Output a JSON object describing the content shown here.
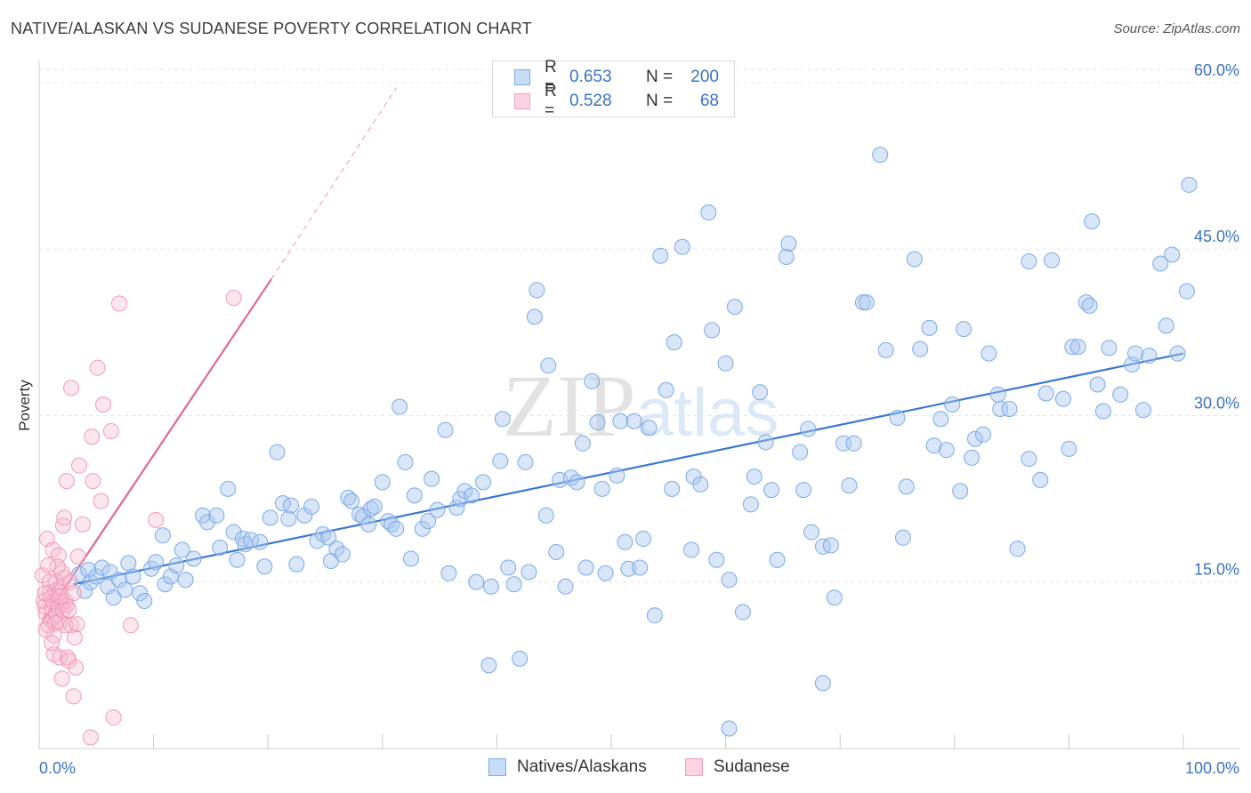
{
  "title": "NATIVE/ALASKAN VS SUDANESE POVERTY CORRELATION CHART",
  "source": "Source: ZipAtlas.com",
  "watermark": "ZIPatlas",
  "legend": [
    {
      "label": "R =",
      "r": "0.653",
      "n_label": "N =",
      "n": "200",
      "color": "#7aaae8"
    },
    {
      "label": "R =",
      "r": "0.528",
      "n_label": "N =",
      "n": "68",
      "color": "#f2a0bb"
    }
  ],
  "bottom_legend": [
    "Natives/Alaskans",
    "Sudanese"
  ],
  "colors": {
    "blue": "#3a77d4",
    "blue_fill": "#aac8f0",
    "pink": "#e0669a",
    "pink_fill": "#f6b8cf",
    "axis_text": "#3a72c4"
  },
  "chart_data": {
    "type": "scatter",
    "title": "NATIVE/ALASKAN VS SUDANESE POVERTY CORRELATION CHART",
    "xlabel": "",
    "ylabel": "Poverty",
    "xlim": [
      0,
      105
    ],
    "ylim": [
      0,
      62
    ],
    "x_tick_labels": [
      "0.0%",
      "100.0%"
    ],
    "y_ticks": [
      15,
      30,
      45,
      60
    ],
    "y_tick_labels": [
      "15.0%",
      "30.0%",
      "45.0%",
      "60.0%"
    ],
    "grid": true,
    "legend_position": "top-center",
    "series": [
      {
        "name": "Natives/Alaskans",
        "color": "#3a77d4",
        "trend": {
          "x0": 3,
          "y0": 14.8,
          "x1": 100,
          "y1": 35.6
        },
        "points": [
          [
            3.5,
            15.7
          ],
          [
            4,
            14.2
          ],
          [
            4.3,
            16.1
          ],
          [
            4.5,
            15.0
          ],
          [
            5,
            15.5
          ],
          [
            5.5,
            16.3
          ],
          [
            6,
            14.6
          ],
          [
            6.2,
            15.9
          ],
          [
            6.5,
            13.6
          ],
          [
            7,
            15.2
          ],
          [
            7.5,
            14.3
          ],
          [
            7.8,
            16.7
          ],
          [
            8.2,
            15.5
          ],
          [
            8.8,
            14.0
          ],
          [
            9.2,
            13.3
          ],
          [
            9.8,
            16.2
          ],
          [
            10.2,
            16.8
          ],
          [
            10.8,
            19.2
          ],
          [
            11,
            14.8
          ],
          [
            11.5,
            15.5
          ],
          [
            12,
            16.5
          ],
          [
            12.5,
            17.9
          ],
          [
            12.8,
            15.2
          ],
          [
            13.5,
            17.1
          ],
          [
            14.3,
            21.0
          ],
          [
            14.7,
            20.4
          ],
          [
            15.5,
            21.0
          ],
          [
            15.8,
            18.1
          ],
          [
            16.5,
            23.4
          ],
          [
            17,
            19.5
          ],
          [
            17.3,
            17.0
          ],
          [
            17.8,
            18.9
          ],
          [
            18,
            18.4
          ],
          [
            18.5,
            18.8
          ],
          [
            19.3,
            18.6
          ],
          [
            19.7,
            16.4
          ],
          [
            20.2,
            20.8
          ],
          [
            20.8,
            26.7
          ],
          [
            21.3,
            22.1
          ],
          [
            21.8,
            20.7
          ],
          [
            22,
            21.9
          ],
          [
            22.5,
            16.6
          ],
          [
            23.2,
            21.0
          ],
          [
            23.8,
            21.8
          ],
          [
            24.3,
            18.7
          ],
          [
            24.8,
            19.3
          ],
          [
            25.3,
            19.0
          ],
          [
            25.5,
            16.9
          ],
          [
            26,
            18.0
          ],
          [
            26.5,
            17.5
          ],
          [
            27,
            22.6
          ],
          [
            27.3,
            22.3
          ],
          [
            28,
            21.1
          ],
          [
            28.3,
            20.9
          ],
          [
            28.8,
            20.2
          ],
          [
            29,
            21.6
          ],
          [
            29.3,
            21.8
          ],
          [
            30,
            24.0
          ],
          [
            30.5,
            20.5
          ],
          [
            30.8,
            20.2
          ],
          [
            31.2,
            19.8
          ],
          [
            31.5,
            30.8
          ],
          [
            32,
            25.8
          ],
          [
            32.5,
            17.1
          ],
          [
            32.8,
            22.8
          ],
          [
            33.5,
            19.8
          ],
          [
            34,
            20.5
          ],
          [
            34.3,
            24.3
          ],
          [
            34.8,
            21.5
          ],
          [
            35.5,
            28.7
          ],
          [
            35.8,
            15.8
          ],
          [
            36.5,
            21.7
          ],
          [
            36.8,
            22.5
          ],
          [
            37.2,
            23.2
          ],
          [
            37.8,
            22.8
          ],
          [
            38.2,
            15.0
          ],
          [
            38.8,
            24.0
          ],
          [
            39.3,
            7.5
          ],
          [
            39.5,
            14.6
          ],
          [
            40.3,
            25.9
          ],
          [
            40.5,
            29.7
          ],
          [
            41,
            16.3
          ],
          [
            41.5,
            14.8
          ],
          [
            42,
            8.1
          ],
          [
            42.5,
            25.8
          ],
          [
            42.8,
            15.9
          ],
          [
            43.3,
            38.9
          ],
          [
            43.5,
            41.3
          ],
          [
            44.3,
            21.0
          ],
          [
            44.5,
            34.5
          ],
          [
            45.2,
            17.7
          ],
          [
            45.5,
            24.2
          ],
          [
            46,
            14.6
          ],
          [
            46.5,
            24.4
          ],
          [
            47,
            24.0
          ],
          [
            47.5,
            27.5
          ],
          [
            47.8,
            16.3
          ],
          [
            48.3,
            33.1
          ],
          [
            48.8,
            29.4
          ],
          [
            49.2,
            23.4
          ],
          [
            49.5,
            15.8
          ],
          [
            50.5,
            24.6
          ],
          [
            50.8,
            29.5
          ],
          [
            51.2,
            18.6
          ],
          [
            51.5,
            16.2
          ],
          [
            52,
            29.5
          ],
          [
            52.5,
            16.3
          ],
          [
            52.8,
            18.9
          ],
          [
            53.3,
            28.9
          ],
          [
            53.8,
            12.0
          ],
          [
            54.3,
            44.4
          ],
          [
            54.8,
            32.3
          ],
          [
            55.3,
            23.4
          ],
          [
            55.5,
            36.6
          ],
          [
            56.2,
            45.2
          ],
          [
            57,
            17.9
          ],
          [
            57.2,
            24.5
          ],
          [
            57.8,
            23.8
          ],
          [
            58.5,
            48.3
          ],
          [
            58.8,
            37.7
          ],
          [
            59.2,
            17.0
          ],
          [
            60,
            34.7
          ],
          [
            60.3,
            15.2
          ],
          [
            60.8,
            39.8
          ],
          [
            61.5,
            12.3
          ],
          [
            62.2,
            22.0
          ],
          [
            62.5,
            24.5
          ],
          [
            63,
            32.1
          ],
          [
            63.5,
            27.6
          ],
          [
            64,
            23.3
          ],
          [
            64.5,
            17.0
          ],
          [
            65.3,
            44.3
          ],
          [
            65.5,
            45.5
          ],
          [
            66.5,
            26.7
          ],
          [
            66.8,
            23.3
          ],
          [
            67.2,
            28.8
          ],
          [
            67.5,
            19.5
          ],
          [
            68.5,
            18.2
          ],
          [
            68.5,
            5.9
          ],
          [
            69.2,
            18.3
          ],
          [
            69.5,
            13.6
          ],
          [
            70.3,
            27.5
          ],
          [
            70.8,
            23.7
          ],
          [
            71.2,
            27.5
          ],
          [
            72,
            40.2
          ],
          [
            72.3,
            40.2
          ],
          [
            73.5,
            53.5
          ],
          [
            74,
            35.9
          ],
          [
            75,
            29.8
          ],
          [
            75.5,
            19.0
          ],
          [
            75.8,
            23.6
          ],
          [
            76.5,
            44.1
          ],
          [
            77,
            36.0
          ],
          [
            77.8,
            37.9
          ],
          [
            78.2,
            27.3
          ],
          [
            78.8,
            29.7
          ],
          [
            79.3,
            26.9
          ],
          [
            79.8,
            31.0
          ],
          [
            80.5,
            23.2
          ],
          [
            80.8,
            37.8
          ],
          [
            81.5,
            26.2
          ],
          [
            81.8,
            27.9
          ],
          [
            82.5,
            28.3
          ],
          [
            83,
            35.6
          ],
          [
            83.8,
            31.9
          ],
          [
            84,
            30.6
          ],
          [
            84.8,
            30.6
          ],
          [
            85.5,
            18.0
          ],
          [
            86.5,
            43.9
          ],
          [
            86.5,
            26.1
          ],
          [
            87.5,
            24.2
          ],
          [
            88,
            32.0
          ],
          [
            88.5,
            44.0
          ],
          [
            89.5,
            31.5
          ],
          [
            90,
            27.0
          ],
          [
            90.3,
            36.2
          ],
          [
            90.8,
            36.2
          ],
          [
            91.5,
            40.2
          ],
          [
            91.8,
            39.9
          ],
          [
            92,
            47.5
          ],
          [
            92.5,
            32.8
          ],
          [
            93,
            30.4
          ],
          [
            93.5,
            36.1
          ],
          [
            94.5,
            31.9
          ],
          [
            95.5,
            34.6
          ],
          [
            95.8,
            35.6
          ],
          [
            96.5,
            30.5
          ],
          [
            97,
            35.4
          ],
          [
            98,
            43.7
          ],
          [
            98.5,
            38.1
          ],
          [
            99,
            44.5
          ],
          [
            99.5,
            35.6
          ],
          [
            100.3,
            41.2
          ],
          [
            100.5,
            50.8
          ],
          [
            60.3,
            1.8
          ]
        ]
      },
      {
        "name": "Sudanese",
        "color": "#e0669a",
        "trend": {
          "x0": 0.3,
          "y0": 11.5,
          "x1": 20.3,
          "y1": 42.3
        },
        "trend_extension": {
          "x0": 20.3,
          "y0": 42.3,
          "x1": 31.2,
          "y1": 59.5
        },
        "points": [
          [
            0.3,
            15.6
          ],
          [
            0.4,
            13.3
          ],
          [
            0.5,
            12.8
          ],
          [
            0.6,
            12.2
          ],
          [
            0.7,
            18.9
          ],
          [
            0.8,
            11.1
          ],
          [
            0.9,
            14.1
          ],
          [
            1.0,
            13.6
          ],
          [
            1.0,
            11.6
          ],
          [
            1.1,
            12.6
          ],
          [
            1.2,
            13.2
          ],
          [
            1.2,
            17.9
          ],
          [
            1.3,
            10.2
          ],
          [
            1.3,
            8.5
          ],
          [
            1.4,
            14.2
          ],
          [
            1.5,
            12.0
          ],
          [
            1.5,
            15.0
          ],
          [
            1.6,
            13.8
          ],
          [
            1.7,
            12.8
          ],
          [
            1.7,
            17.4
          ],
          [
            1.8,
            8.2
          ],
          [
            1.8,
            11.4
          ],
          [
            1.9,
            14.5
          ],
          [
            2.0,
            13.0
          ],
          [
            2.0,
            6.3
          ],
          [
            2.1,
            20.1
          ],
          [
            2.1,
            12.5
          ],
          [
            2.2,
            15.4
          ],
          [
            2.2,
            20.8
          ],
          [
            2.3,
            11.1
          ],
          [
            2.3,
            13.3
          ],
          [
            2.4,
            24.1
          ],
          [
            2.4,
            12.9
          ],
          [
            2.5,
            8.2
          ],
          [
            2.6,
            7.9
          ],
          [
            2.7,
            15.0
          ],
          [
            2.8,
            11.1
          ],
          [
            2.8,
            32.5
          ],
          [
            3.0,
            4.7
          ],
          [
            3.1,
            10.0
          ],
          [
            3.2,
            7.3
          ],
          [
            3.3,
            11.2
          ],
          [
            3.4,
            17.3
          ],
          [
            3.5,
            25.5
          ],
          [
            3.8,
            20.2
          ],
          [
            4.6,
            28.1
          ],
          [
            4.7,
            24.1
          ],
          [
            5.1,
            34.3
          ],
          [
            5.4,
            22.3
          ],
          [
            5.6,
            31.0
          ],
          [
            6.3,
            28.6
          ],
          [
            6.5,
            2.8
          ],
          [
            7.0,
            40.1
          ],
          [
            8.0,
            11.1
          ],
          [
            10.2,
            20.6
          ],
          [
            17.0,
            40.6
          ],
          [
            4.5,
            1.0
          ],
          [
            0.9,
            15.0
          ],
          [
            1.6,
            16.4
          ],
          [
            0.5,
            14.0
          ],
          [
            2.6,
            12.5
          ],
          [
            1.1,
            9.5
          ],
          [
            0.8,
            16.5
          ],
          [
            1.4,
            11.3
          ],
          [
            2.0,
            15.9
          ],
          [
            3.0,
            14.0
          ],
          [
            1.9,
            13.7
          ],
          [
            0.6,
            10.7
          ]
        ]
      }
    ]
  }
}
